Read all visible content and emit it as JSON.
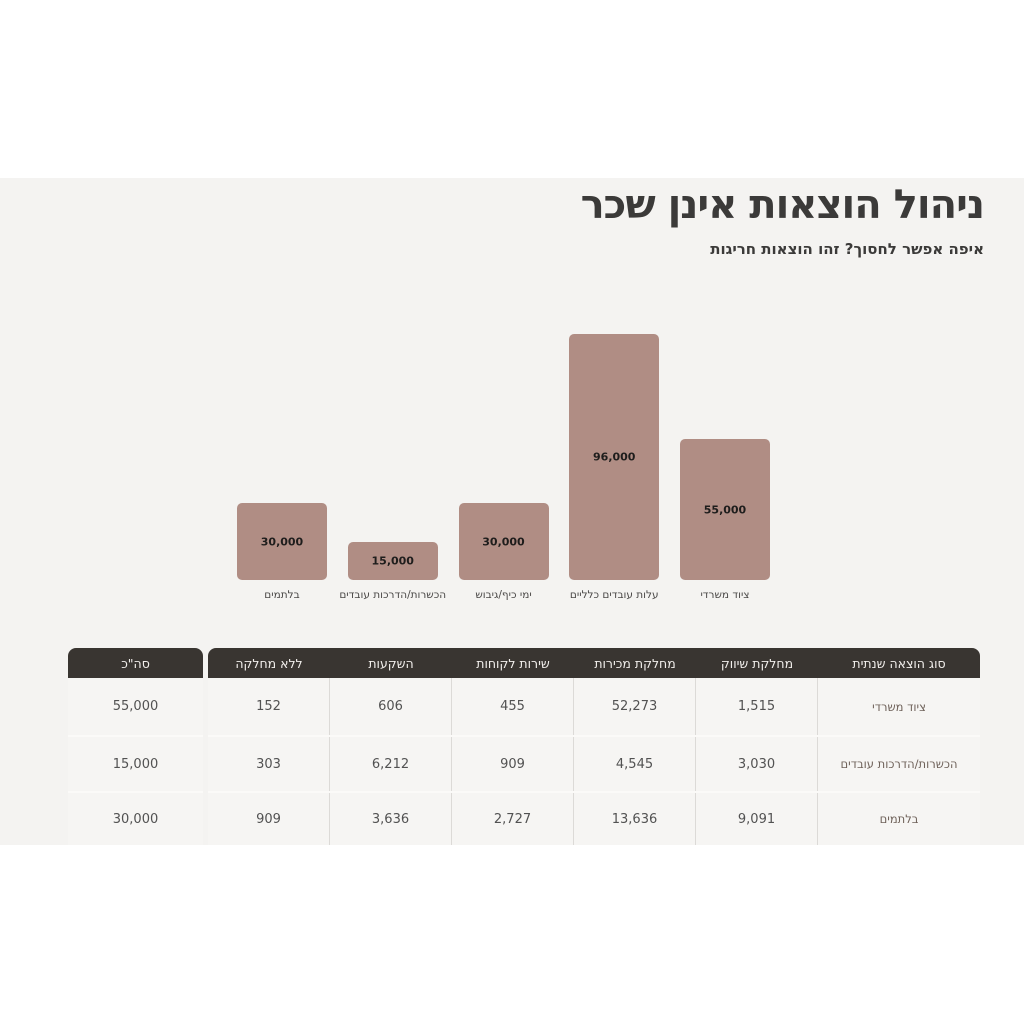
{
  "page": {
    "title": "ניהול הוצאות אינן שכר",
    "subtitle": "איפה אפשר לחסוך? זהו הוצאות חריגות"
  },
  "colors": {
    "page_bg": "#ffffff",
    "section_bg": "#f4f3f1",
    "bar_fill": "#b08d84",
    "table_header_bg": "#393531",
    "table_header_text": "#f2efec"
  },
  "chart_data": {
    "type": "bar",
    "title": "",
    "xlabel": "",
    "ylabel": "",
    "direction": "rtl",
    "grid": false,
    "legend": false,
    "ylim": [
      0,
      96000
    ],
    "categories": [
      "ציוד משרדי",
      "עלות עובדים כלליים",
      "ימי כיף/גיבוש",
      "הכשרות/הדרכות עובדים",
      "בלתמים"
    ],
    "values": [
      55000,
      96000,
      30000,
      15000,
      30000
    ],
    "value_labels": [
      "55,000",
      "96,000",
      "30,000",
      "15,000",
      "30,000"
    ]
  },
  "table": {
    "direction": "rtl",
    "main_columns": [
      "סוג הוצאה שנתית",
      "מחלקת שיווק",
      "מחלקת מכירות",
      "שירות לקוחות",
      "השקעות",
      "ללא מחלקה"
    ],
    "total_column": {
      "header": "סה\"כ",
      "values": [
        "55,000",
        "15,000",
        "30,000"
      ]
    },
    "rows": [
      {
        "cells": [
          "ציוד משרדי",
          "1,515",
          "52,273",
          "455",
          "606",
          "152"
        ]
      },
      {
        "cells": [
          "הכשרות/הדרכות עובדים",
          "3,030",
          "4,545",
          "909",
          "6,212",
          "303"
        ]
      },
      {
        "cells": [
          "בלתמים",
          "9,091",
          "13,636",
          "2,727",
          "3,636",
          "909"
        ]
      }
    ]
  }
}
